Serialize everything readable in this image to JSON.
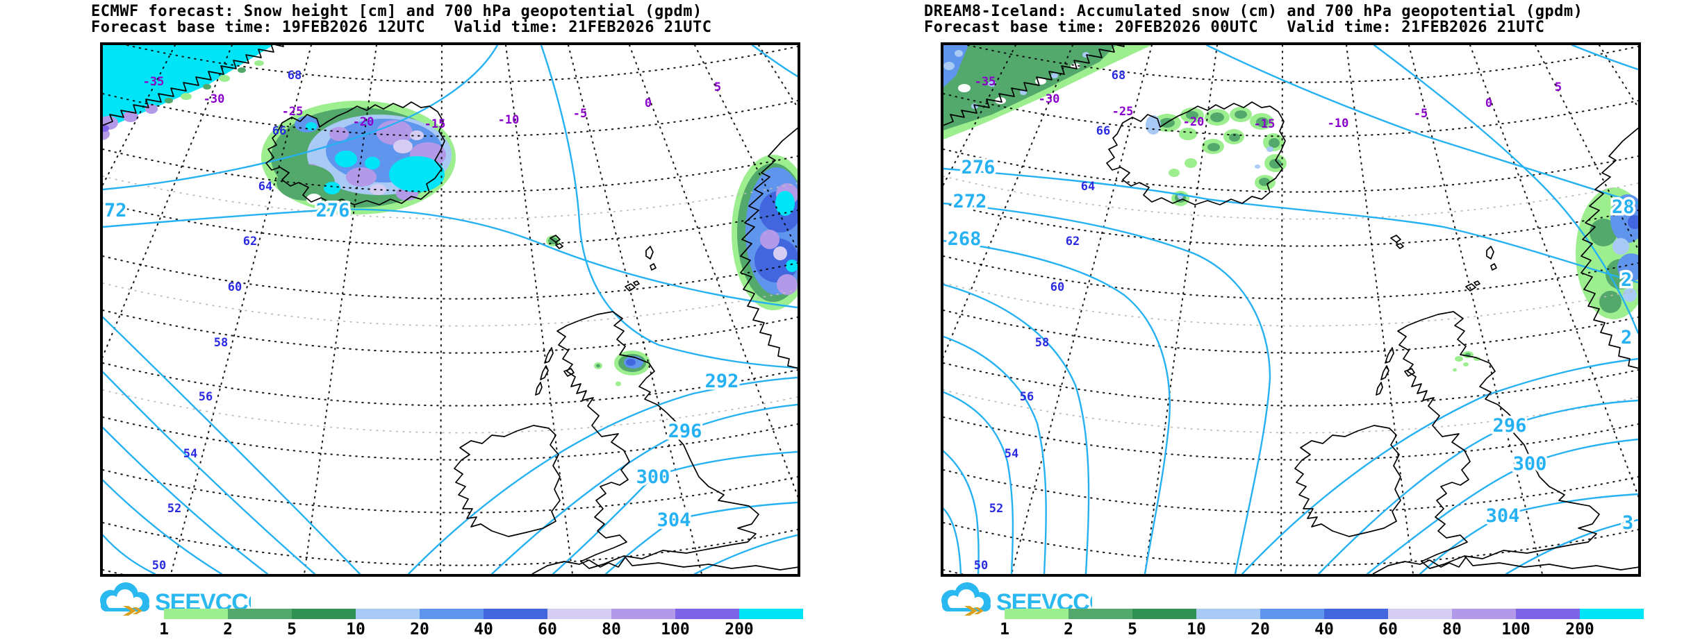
{
  "colors": {
    "contour_line": "#25b1f2",
    "lat_label": "#2a2ae0",
    "lon_label": "#8a00cc",
    "title_text": "#000000",
    "logo_blue": "#29b9f0",
    "logo_gold": "#d8a01d"
  },
  "logo": {
    "text": "SEEVCCC"
  },
  "legend": {
    "values": [
      "1",
      "2",
      "5",
      "10",
      "20",
      "40",
      "60",
      "80",
      "100",
      "200"
    ],
    "colors": [
      "#9cee8f",
      "#53a96b",
      "#2f9153",
      "#a8caf5",
      "#6095ee",
      "#4166dd",
      "#d6cef2",
      "#b39ae8",
      "#7d63e6",
      "#00e4f8"
    ]
  },
  "panels": [
    {
      "title_line1": "ECMWF forecast: Snow height [cm] and 700 hPa geopotential (gpdm)",
      "title_line2": "Forecast base time: 19FEB2026 12UTC   Valid time: 21FEB2026 21UTC",
      "lat_labels": [
        "68",
        "66",
        "64",
        "62",
        "60",
        "58",
        "56",
        "54",
        "52",
        "50"
      ],
      "lon_labels": [
        "-35",
        "-30",
        "-25",
        "-20",
        "-15",
        "-10",
        "-5",
        "0",
        "5"
      ],
      "contour_labels": [
        "72",
        "276",
        "292",
        "296",
        "300",
        "304"
      ]
    },
    {
      "title_line1": "DREAM8-Iceland: Accumulated snow (cm) and 700 hPa geopotential (gpdm)",
      "title_line2": "Forecast base time: 20FEB2026 00UTC   Valid time: 21FEB2026 21UTC",
      "lat_labels": [
        "68",
        "66",
        "64",
        "62",
        "60",
        "58",
        "56",
        "54",
        "52",
        "50"
      ],
      "lon_labels": [
        "-35",
        "-30",
        "-25",
        "-20",
        "-15",
        "-10",
        "-5",
        "0",
        "5"
      ],
      "contour_labels": [
        "276",
        "272",
        "268",
        "296",
        "300",
        "304",
        "28",
        "2",
        "2",
        "3"
      ]
    }
  ]
}
